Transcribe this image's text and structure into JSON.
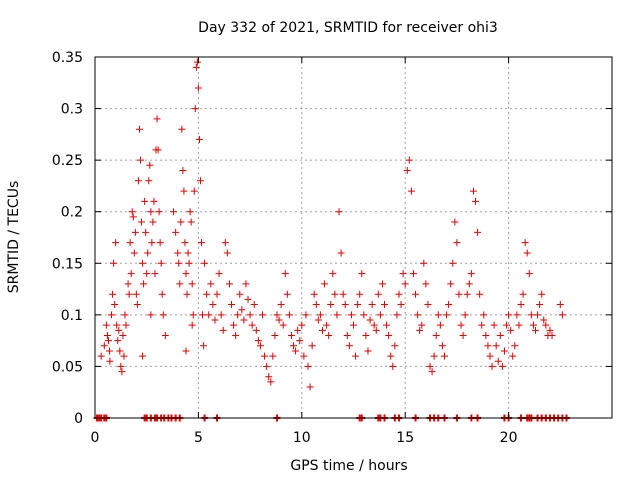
{
  "chart_data": {
    "type": "scatter",
    "title": "Day 332 of 2021, SRMTID for receiver ohi3",
    "xlabel": "GPS time / hours",
    "ylabel": "SRMTID / TECUs",
    "xlim": [
      0,
      25
    ],
    "ylim": [
      0,
      0.35
    ],
    "xticks": [
      0,
      5,
      10,
      15,
      20
    ],
    "xtick_labels": [
      "0",
      "5",
      "10",
      "15",
      "20"
    ],
    "yticks": [
      0,
      0.05,
      0.1,
      0.15,
      0.2,
      0.25,
      0.3,
      0.35
    ],
    "ytick_labels": [
      "0",
      "0.05",
      "0.1",
      "0.15",
      "0.2",
      "0.25",
      "0.3",
      "0.35"
    ],
    "grid": true,
    "marker": "plus",
    "marker_color": "#e00000",
    "series": [
      {
        "name": "SRMTID",
        "points": [
          [
            0.3,
            0.06
          ],
          [
            0.45,
            0.07
          ],
          [
            0.55,
            0.09
          ],
          [
            0.6,
            0.08
          ],
          [
            0.65,
            0.075
          ],
          [
            0.7,
            0.065
          ],
          [
            0.72,
            0.055
          ],
          [
            0.8,
            0.1
          ],
          [
            0.85,
            0.12
          ],
          [
            0.9,
            0.15
          ],
          [
            0.95,
            0.11
          ],
          [
            1.0,
            0.17
          ],
          [
            1.05,
            0.09
          ],
          [
            1.1,
            0.075
          ],
          [
            1.15,
            0.085
          ],
          [
            1.2,
            0.065
          ],
          [
            1.25,
            0.05
          ],
          [
            1.3,
            0.045
          ],
          [
            1.35,
            0.08
          ],
          [
            1.4,
            0.06
          ],
          [
            1.45,
            0.1
          ],
          [
            1.5,
            0.09
          ],
          [
            1.6,
            0.13
          ],
          [
            1.65,
            0.12
          ],
          [
            1.7,
            0.17
          ],
          [
            1.75,
            0.14
          ],
          [
            1.8,
            0.2
          ],
          [
            1.85,
            0.195
          ],
          [
            1.9,
            0.16
          ],
          [
            1.95,
            0.18
          ],
          [
            2.0,
            0.12
          ],
          [
            2.05,
            0.11
          ],
          [
            2.1,
            0.23
          ],
          [
            2.15,
            0.28
          ],
          [
            2.2,
            0.25
          ],
          [
            2.25,
            0.19
          ],
          [
            2.3,
            0.15
          ],
          [
            2.35,
            0.13
          ],
          [
            2.4,
            0.21
          ],
          [
            2.45,
            0.18
          ],
          [
            2.5,
            0.14
          ],
          [
            2.55,
            0.16
          ],
          [
            2.6,
            0.23
          ],
          [
            2.65,
            0.245
          ],
          [
            2.7,
            0.2
          ],
          [
            2.75,
            0.17
          ],
          [
            2.8,
            0.19
          ],
          [
            2.85,
            0.21
          ],
          [
            2.9,
            0.14
          ],
          [
            2.95,
            0.26
          ],
          [
            3.0,
            0.29
          ],
          [
            3.05,
            0.26
          ],
          [
            3.1,
            0.2
          ],
          [
            3.15,
            0.17
          ],
          [
            3.2,
            0.15
          ],
          [
            3.25,
            0.12
          ],
          [
            2.3,
            0.06
          ],
          [
            2.7,
            0.1
          ],
          [
            3.3,
            0.1
          ],
          [
            3.4,
            0.08
          ],
          [
            3.8,
            0.2
          ],
          [
            3.9,
            0.18
          ],
          [
            4.0,
            0.16
          ],
          [
            4.05,
            0.15
          ],
          [
            4.1,
            0.13
          ],
          [
            4.15,
            0.19
          ],
          [
            4.2,
            0.28
          ],
          [
            4.25,
            0.24
          ],
          [
            4.3,
            0.22
          ],
          [
            4.35,
            0.17
          ],
          [
            4.4,
            0.14
          ],
          [
            4.45,
            0.12
          ],
          [
            4.5,
            0.16
          ],
          [
            4.55,
            0.15
          ],
          [
            4.6,
            0.2
          ],
          [
            4.65,
            0.19
          ],
          [
            4.7,
            0.13
          ],
          [
            4.75,
            0.1
          ],
          [
            4.8,
            0.22
          ],
          [
            4.85,
            0.3
          ],
          [
            4.9,
            0.34
          ],
          [
            4.95,
            0.345
          ],
          [
            5.0,
            0.32
          ],
          [
            5.05,
            0.27
          ],
          [
            5.1,
            0.23
          ],
          [
            5.15,
            0.17
          ],
          [
            5.2,
            0.1
          ],
          [
            5.25,
            0.07
          ],
          [
            4.4,
            0.065
          ],
          [
            4.7,
            0.09
          ],
          [
            5.3,
            0.15
          ],
          [
            5.4,
            0.12
          ],
          [
            5.5,
            0.1
          ],
          [
            5.6,
            0.13
          ],
          [
            5.7,
            0.11
          ],
          [
            5.8,
            0.095
          ],
          [
            5.9,
            0.12
          ],
          [
            6.0,
            0.14
          ],
          [
            6.1,
            0.1
          ],
          [
            6.2,
            0.085
          ],
          [
            6.3,
            0.17
          ],
          [
            6.4,
            0.16
          ],
          [
            6.5,
            0.13
          ],
          [
            6.6,
            0.11
          ],
          [
            6.7,
            0.09
          ],
          [
            6.8,
            0.08
          ],
          [
            6.9,
            0.1
          ],
          [
            7.0,
            0.12
          ],
          [
            7.1,
            0.105
          ],
          [
            7.2,
            0.095
          ],
          [
            7.3,
            0.13
          ],
          [
            7.4,
            0.115
          ],
          [
            7.5,
            0.1
          ],
          [
            7.6,
            0.09
          ],
          [
            7.7,
            0.11
          ],
          [
            7.8,
            0.085
          ],
          [
            7.9,
            0.075
          ],
          [
            8.0,
            0.07
          ],
          [
            8.1,
            0.1
          ],
          [
            8.2,
            0.06
          ],
          [
            8.3,
            0.05
          ],
          [
            8.4,
            0.04
          ],
          [
            8.5,
            0.035
          ],
          [
            8.6,
            0.06
          ],
          [
            8.7,
            0.08
          ],
          [
            8.8,
            0.1
          ],
          [
            8.9,
            0.095
          ],
          [
            9.0,
            0.11
          ],
          [
            9.1,
            0.09
          ],
          [
            9.2,
            0.14
          ],
          [
            9.3,
            0.12
          ],
          [
            9.4,
            0.1
          ],
          [
            9.5,
            0.08
          ],
          [
            9.6,
            0.07
          ],
          [
            9.7,
            0.065
          ],
          [
            9.8,
            0.085
          ],
          [
            9.9,
            0.075
          ],
          [
            10.0,
            0.09
          ],
          [
            10.1,
            0.06
          ],
          [
            10.2,
            0.1
          ],
          [
            10.3,
            0.05
          ],
          [
            10.4,
            0.03
          ],
          [
            10.5,
            0.07
          ],
          [
            10.6,
            0.12
          ],
          [
            10.7,
            0.11
          ],
          [
            10.8,
            0.095
          ],
          [
            10.9,
            0.1
          ],
          [
            11.0,
            0.085
          ],
          [
            11.1,
            0.13
          ],
          [
            11.2,
            0.09
          ],
          [
            11.3,
            0.08
          ],
          [
            11.4,
            0.11
          ],
          [
            11.5,
            0.14
          ],
          [
            11.6,
            0.12
          ],
          [
            11.7,
            0.1
          ],
          [
            11.8,
            0.2
          ],
          [
            11.9,
            0.16
          ],
          [
            12.0,
            0.12
          ],
          [
            12.1,
            0.11
          ],
          [
            12.2,
            0.08
          ],
          [
            12.3,
            0.07
          ],
          [
            12.4,
            0.1
          ],
          [
            12.5,
            0.09
          ],
          [
            12.6,
            0.06
          ],
          [
            12.7,
            0.11
          ],
          [
            12.8,
            0.12
          ],
          [
            12.9,
            0.14
          ],
          [
            13.0,
            0.1
          ],
          [
            13.1,
            0.08
          ],
          [
            13.2,
            0.065
          ],
          [
            13.3,
            0.095
          ],
          [
            13.4,
            0.11
          ],
          [
            13.5,
            0.09
          ],
          [
            13.6,
            0.085
          ],
          [
            13.7,
            0.12
          ],
          [
            13.8,
            0.1
          ],
          [
            13.9,
            0.13
          ],
          [
            14.0,
            0.11
          ],
          [
            14.1,
            0.09
          ],
          [
            14.2,
            0.08
          ],
          [
            14.3,
            0.06
          ],
          [
            14.4,
            0.05
          ],
          [
            14.5,
            0.07
          ],
          [
            14.6,
            0.1
          ],
          [
            14.7,
            0.12
          ],
          [
            14.8,
            0.11
          ],
          [
            14.9,
            0.14
          ],
          [
            15.0,
            0.13
          ],
          [
            15.1,
            0.24
          ],
          [
            15.2,
            0.25
          ],
          [
            15.3,
            0.22
          ],
          [
            15.4,
            0.14
          ],
          [
            15.5,
            0.12
          ],
          [
            15.6,
            0.1
          ],
          [
            15.7,
            0.085
          ],
          [
            15.8,
            0.09
          ],
          [
            15.9,
            0.15
          ],
          [
            16.0,
            0.13
          ],
          [
            16.1,
            0.11
          ],
          [
            16.2,
            0.05
          ],
          [
            16.3,
            0.045
          ],
          [
            16.4,
            0.06
          ],
          [
            16.5,
            0.08
          ],
          [
            16.6,
            0.1
          ],
          [
            16.7,
            0.09
          ],
          [
            16.8,
            0.07
          ],
          [
            16.9,
            0.06
          ],
          [
            17.0,
            0.1
          ],
          [
            17.1,
            0.11
          ],
          [
            17.2,
            0.13
          ],
          [
            17.3,
            0.15
          ],
          [
            17.4,
            0.19
          ],
          [
            17.5,
            0.17
          ],
          [
            17.6,
            0.12
          ],
          [
            17.7,
            0.09
          ],
          [
            17.8,
            0.08
          ],
          [
            17.9,
            0.1
          ],
          [
            18.0,
            0.12
          ],
          [
            18.1,
            0.13
          ],
          [
            18.2,
            0.14
          ],
          [
            18.3,
            0.22
          ],
          [
            18.4,
            0.21
          ],
          [
            18.5,
            0.18
          ],
          [
            18.6,
            0.12
          ],
          [
            18.7,
            0.09
          ],
          [
            18.8,
            0.1
          ],
          [
            18.9,
            0.08
          ],
          [
            19.0,
            0.07
          ],
          [
            19.1,
            0.06
          ],
          [
            19.2,
            0.05
          ],
          [
            19.3,
            0.09
          ],
          [
            19.4,
            0.07
          ],
          [
            19.5,
            0.055
          ],
          [
            19.6,
            0.08
          ],
          [
            19.7,
            0.05
          ],
          [
            19.8,
            0.065
          ],
          [
            19.9,
            0.09
          ],
          [
            20.0,
            0.1
          ],
          [
            20.1,
            0.085
          ],
          [
            20.2,
            0.06
          ],
          [
            20.3,
            0.07
          ],
          [
            20.4,
            0.1
          ],
          [
            20.5,
            0.09
          ],
          [
            20.6,
            0.11
          ],
          [
            20.7,
            0.12
          ],
          [
            20.8,
            0.17
          ],
          [
            20.9,
            0.16
          ],
          [
            21.0,
            0.14
          ],
          [
            21.1,
            0.1
          ],
          [
            21.2,
            0.09
          ],
          [
            21.3,
            0.085
          ],
          [
            21.4,
            0.1
          ],
          [
            21.5,
            0.11
          ],
          [
            21.6,
            0.12
          ],
          [
            21.7,
            0.095
          ],
          [
            21.8,
            0.09
          ],
          [
            21.9,
            0.08
          ],
          [
            22.0,
            0.085
          ],
          [
            22.1,
            0.08
          ],
          [
            22.5,
            0.11
          ],
          [
            22.6,
            0.1
          ]
        ]
      }
    ],
    "zero_markers_x": [
      0.1,
      0.2,
      0.3,
      0.45,
      0.55,
      2.4,
      2.5,
      2.7,
      2.9,
      3.0,
      3.2,
      3.35,
      3.55,
      3.7,
      3.9,
      4.1,
      5.3,
      5.9,
      8.8,
      12.8,
      12.9,
      13.7,
      13.8,
      14.0,
      14.5,
      14.7,
      15.5,
      16.2,
      16.4,
      16.6,
      16.9,
      17.5,
      18.2,
      18.5,
      19.8,
      20.0,
      20.6,
      20.9,
      21.0,
      21.1,
      21.4,
      21.6,
      21.8,
      22.0,
      22.2,
      22.4,
      22.6,
      22.8
    ]
  }
}
